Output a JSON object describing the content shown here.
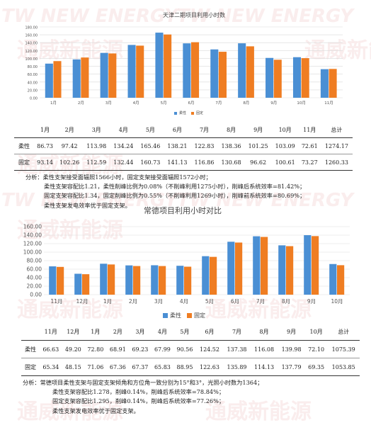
{
  "watermark": {
    "latin": "TW NEW ENERGY",
    "chinese": "通威新能源"
  },
  "colors": {
    "series_flexible": "#4a8fd4",
    "series_fixed": "#ef7d22"
  },
  "tianjin": {
    "table": {
      "headers": [
        "1月",
        "2月",
        "3月",
        "4月",
        "5月",
        "6月",
        "7月",
        "8月",
        "9月",
        "10月",
        "11月",
        "总计"
      ],
      "rows": [
        {
          "label": "柔性",
          "values": [
            "86.73",
            "97.42",
            "113.98",
            "134.24",
            "165.46",
            "138.21",
            "122.83",
            "138.36",
            "101.25",
            "103.09",
            "72.61",
            "1274.17"
          ]
        },
        {
          "label": "固定",
          "values": [
            "93.14",
            "102.26",
            "112.59",
            "132.44",
            "160.73",
            "141.13",
            "116.86",
            "130.68",
            "96.62",
            "100.61",
            "73.27",
            "1260.33"
          ]
        }
      ]
    },
    "analysis": [
      "分析：柔性支架接受面辐照1566小时，固定支架接受面辐照1572小时；",
      "柔性支架容配比1.21，柔性削峰比例为0.08%（不削峰利用1275小时），削峰后系统效率=81.42%；",
      "固定支架容配比1.34，固定削峰比例为0.55%（不削峰利用1269小时），削峰前系统效率=80.69%；",
      "柔性支架发电效率优于固定支架。"
    ]
  },
  "changde": {
    "table": {
      "headers": [
        "11月",
        "12月",
        "1月",
        "2月",
        "3月",
        "4月",
        "5月",
        "6月",
        "7月",
        "8月",
        "9月",
        "10月",
        "总计"
      ],
      "rows": [
        {
          "label": "柔性",
          "values": [
            "66.63",
            "49.20",
            "72.80",
            "68.91",
            "69.23",
            "67.99",
            "90.56",
            "124.52",
            "137.38",
            "116.08",
            "139.98",
            "72.10",
            "1075.39"
          ]
        },
        {
          "label": "固定",
          "values": [
            "65.34",
            "48.15",
            "71.06",
            "67.36",
            "67.37",
            "65.83",
            "88.95",
            "122.63",
            "135.89",
            "114.13",
            "137.79",
            "69.35",
            "1053.85"
          ]
        }
      ]
    },
    "analysis": [
      "分析：常德项目柔性支架与固定支架倾角和方位角一致分别为15°和3°，光照小时数为1364；",
      "柔性支架容配比1.278，削峰0.14%，削峰后系统效率=78.84%；",
      "固定支架容配比1.295，削峰0.14%，削峰后系统效率=77.26%；",
      "柔性支架发电效率优于固定支架。"
    ]
  },
  "chart_data": [
    {
      "type": "bar",
      "title": "天津二期项目利用小时数",
      "categories": [
        "1月",
        "2月",
        "3月",
        "4月",
        "5月",
        "6月",
        "7月",
        "8月",
        "9月",
        "10月",
        "11月"
      ],
      "series": [
        {
          "name": "柔性",
          "values": [
            86.73,
            97.42,
            113.98,
            134.24,
            165.46,
            138.21,
            122.83,
            138.36,
            101.25,
            103.09,
            72.61
          ]
        },
        {
          "name": "固定",
          "values": [
            93.14,
            102.26,
            112.59,
            132.44,
            160.73,
            141.13,
            116.86,
            130.68,
            96.62,
            100.61,
            73.27
          ]
        }
      ],
      "ylim": [
        0,
        180
      ],
      "yticks": [
        "0.00",
        "20.00",
        "40.00",
        "60.00",
        "80.00",
        "100.00",
        "120.00",
        "140.00",
        "160.00",
        "180.00"
      ],
      "grid": true,
      "legend": "bottom"
    },
    {
      "type": "bar",
      "title": "常德项目利用小时对比",
      "categories": [
        "11月",
        "12月",
        "1月",
        "2月",
        "3月",
        "4月",
        "5月",
        "6月",
        "7月",
        "8月",
        "9月",
        "10月"
      ],
      "series": [
        {
          "name": "柔性",
          "values": [
            66.63,
            49.2,
            72.8,
            68.91,
            69.23,
            67.99,
            90.56,
            124.52,
            137.38,
            116.08,
            139.98,
            72.1
          ]
        },
        {
          "name": "固定",
          "values": [
            65.34,
            48.15,
            71.06,
            67.36,
            67.37,
            65.83,
            88.95,
            122.63,
            135.89,
            114.13,
            137.79,
            69.35
          ]
        }
      ],
      "ylim": [
        0,
        160
      ],
      "yticks": [
        "0.00",
        "20.00",
        "40.00",
        "60.00",
        "80.00",
        "100.00",
        "120.00",
        "140.00",
        "160.00"
      ],
      "grid": true,
      "legend": "bottom"
    }
  ]
}
